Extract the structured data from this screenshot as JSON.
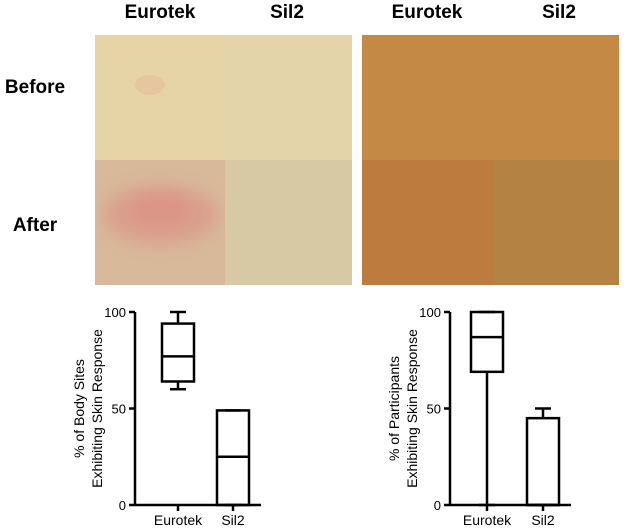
{
  "photo_grid": {
    "column_headers": [
      "Eurotek",
      "Sil2",
      "Eurotek",
      "Sil2"
    ],
    "row_headers": [
      "Before",
      "After"
    ],
    "colors": {
      "light_skin_before_eurotek": "#e7d4a6",
      "light_skin_before_sil2": "#e3d5a9",
      "light_skin_after_eurotek": "#d8b99a",
      "light_skin_after_sil2": "#d6c9a4",
      "redness": "#dd8a82",
      "dark_skin_before": "#c48a45",
      "dark_skin_after_eurotek": "#bd7c3e",
      "dark_skin_after_sil2": "#b48243"
    }
  },
  "chart_data": [
    {
      "type": "box",
      "title": "",
      "ylabel_lines": [
        "% of Body Sites",
        "Exhibiting Skin Response"
      ],
      "ylim": [
        0,
        100
      ],
      "yticks": [
        "0",
        "50",
        "100"
      ],
      "categories": [
        "Eurotek",
        "Sil2"
      ],
      "boxes": [
        {
          "category": "Eurotek",
          "min": 60,
          "q1": 64,
          "median": 77,
          "q3": 94,
          "max": 100
        },
        {
          "category": "Sil2",
          "min": 0,
          "q1": 0,
          "median": 25,
          "q3": 49,
          "max": 49
        }
      ]
    },
    {
      "type": "box",
      "title": "",
      "ylabel_lines": [
        "% of Participants",
        "Exhibiting Skin Response"
      ],
      "ylim": [
        0,
        100
      ],
      "yticks": [
        "0",
        "50",
        "100"
      ],
      "categories": [
        "Eurotek",
        "Sil2"
      ],
      "boxes": [
        {
          "category": "Eurotek",
          "min": 0,
          "q1": 69,
          "median": 87,
          "q3": 100,
          "max": 100
        },
        {
          "category": "Sil2",
          "min": 0,
          "q1": 0,
          "median": 0,
          "q3": 45,
          "max": 50
        }
      ]
    }
  ]
}
